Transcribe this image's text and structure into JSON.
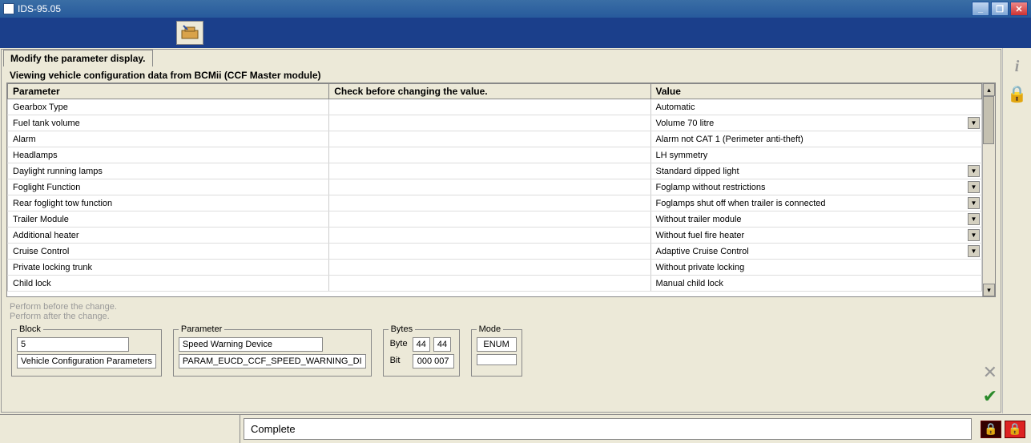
{
  "window": {
    "title": "IDS-95.05"
  },
  "tab": {
    "label": "Modify the parameter display."
  },
  "subtitle": "Viewing vehicle configuration data from BCMii (CCF Master module)",
  "table": {
    "headers": {
      "parameter": "Parameter",
      "check": "Check before changing the value.",
      "value": "Value"
    },
    "rows": [
      {
        "param": "Gearbox Type",
        "check": "",
        "value": "Automatic",
        "dropdown": false
      },
      {
        "param": "Fuel tank volume",
        "check": "",
        "value": "Volume 70 litre",
        "dropdown": true
      },
      {
        "param": "Alarm",
        "check": "",
        "value": "Alarm not CAT 1 (Perimeter anti-theft)",
        "dropdown": false
      },
      {
        "param": "Headlamps",
        "check": "",
        "value": "LH symmetry",
        "dropdown": false
      },
      {
        "param": "Daylight running lamps",
        "check": "",
        "value": "Standard dipped light",
        "dropdown": true
      },
      {
        "param": "Foglight Function",
        "check": "",
        "value": "Foglamp without restrictions",
        "dropdown": true
      },
      {
        "param": "Rear foglight tow function",
        "check": "",
        "value": "Foglamps shut off when trailer is connected",
        "dropdown": true
      },
      {
        "param": "Trailer Module",
        "check": "",
        "value": "Without trailer module",
        "dropdown": true
      },
      {
        "param": "Additional heater",
        "check": "",
        "value": "Without fuel fire heater",
        "dropdown": true
      },
      {
        "param": "Cruise Control",
        "check": "",
        "value": "Adaptive Cruise Control",
        "dropdown": true
      },
      {
        "param": "Private locking trunk",
        "check": "",
        "value": "Without private locking",
        "dropdown": false
      },
      {
        "param": "Child lock",
        "check": "",
        "value": "Manual child lock",
        "dropdown": false
      }
    ]
  },
  "hints": {
    "before": "Perform before the change.",
    "after": "Perform after the change."
  },
  "block": {
    "legend": "Block",
    "num": "5",
    "desc": "Vehicle Configuration Parameters"
  },
  "parameter": {
    "legend": "Parameter",
    "name": "Speed Warning Device",
    "id": "PARAM_EUCD_CCF_SPEED_WARNING_DI"
  },
  "bytes": {
    "legend": "Bytes",
    "byte_label": "Byte",
    "byte_a": "44",
    "byte_b": "44",
    "bit_label": "Bit",
    "bit_val": "000 007"
  },
  "mode": {
    "legend": "Mode",
    "value": "ENUM"
  },
  "status": {
    "text": "Complete"
  }
}
